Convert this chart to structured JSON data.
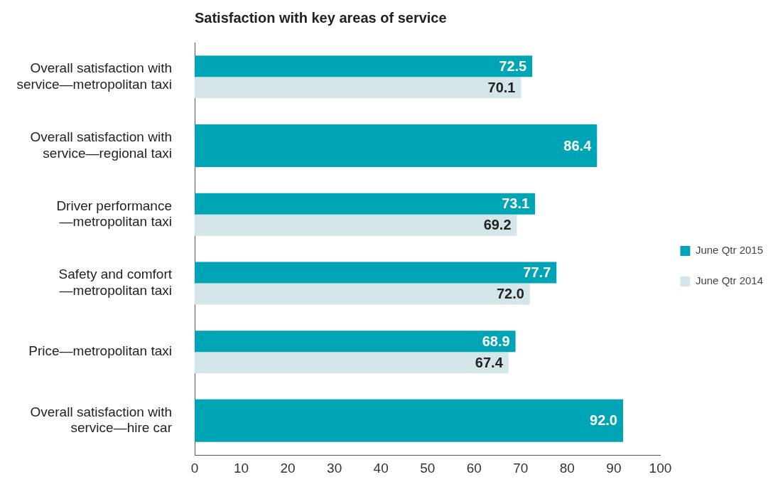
{
  "chart_data": {
    "type": "bar",
    "orientation": "horizontal",
    "title": "Satisfaction with key areas of service",
    "categories": [
      "Overall satisfaction with service—metropolitan taxi",
      "Overall satisfaction with service—regional taxi",
      "Driver performance—metropolitan taxi",
      "Safety and comfort—metropolitan taxi",
      "Price—metropolitan taxi",
      "Overall satisfaction with service—hire car"
    ],
    "series": [
      {
        "name": "June Qtr 2015",
        "color": "#00a5b5",
        "values": [
          72.5,
          86.4,
          73.1,
          77.7,
          68.9,
          92.0
        ],
        "value_labels": [
          "72.5",
          "86.4",
          "73.1",
          "77.7",
          "68.9",
          "92.0"
        ]
      },
      {
        "name": "June Qtr 2014",
        "color": "#d5e6ea",
        "values": [
          70.1,
          null,
          69.2,
          72.0,
          67.4,
          null
        ],
        "value_labels": [
          "70.1",
          null,
          "69.2",
          "72.0",
          "67.4",
          null
        ]
      }
    ],
    "xlim": [
      0,
      100
    ],
    "xticks": [
      0,
      10,
      20,
      30,
      40,
      50,
      60,
      70,
      80,
      90,
      100
    ],
    "grid": false,
    "legend": "right"
  }
}
